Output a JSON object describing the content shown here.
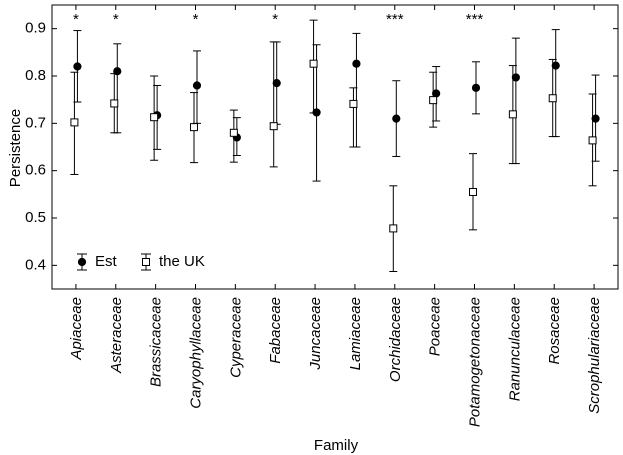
{
  "chart_data": {
    "type": "scatter",
    "xlabel": "Family",
    "ylabel": "Persistence",
    "ylim": [
      0.35,
      0.95
    ],
    "yticks": [
      "0.4",
      "0.5",
      "0.6",
      "0.7",
      "0.8",
      "0.9"
    ],
    "grid": false,
    "legend_position": "bottom-left",
    "categories": [
      "Apiaceae",
      "Asteraceae",
      "Brassicaceae",
      "Caryophyllaceae",
      "Cyperaceae",
      "Fabaceae",
      "Juncaceae",
      "Lamiaceae",
      "Orchidaceae",
      "Poaceae",
      "Potamogetonaceae",
      "Ranunculaceae",
      "Rosaceae",
      "Scrophulariaceae"
    ],
    "significance": [
      "*",
      "*",
      "",
      "*",
      "",
      "*",
      "",
      "",
      "***",
      "",
      "***",
      "",
      "",
      ""
    ],
    "series": [
      {
        "name": "Est",
        "marker": "filled-circle",
        "values": [
          0.82,
          0.81,
          0.717,
          0.78,
          0.67,
          0.785,
          0.723,
          0.826,
          0.71,
          0.763,
          0.775,
          0.797,
          0.822,
          0.71
        ],
        "lower": [
          0.745,
          0.68,
          0.645,
          0.7,
          0.632,
          0.698,
          0.578,
          0.65,
          0.63,
          0.705,
          0.72,
          0.615,
          0.672,
          0.62
        ],
        "upper": [
          0.896,
          0.868,
          0.78,
          0.853,
          0.712,
          0.872,
          0.866,
          0.89,
          0.79,
          0.82,
          0.83,
          0.88,
          0.898,
          0.802
        ]
      },
      {
        "name": "the UK",
        "marker": "open-square",
        "values": [
          0.702,
          0.742,
          0.713,
          0.692,
          0.68,
          0.694,
          0.826,
          0.741,
          0.478,
          0.749,
          0.555,
          0.719,
          0.753,
          0.664
        ],
        "lower": [
          0.592,
          0.68,
          0.622,
          0.617,
          0.618,
          0.608,
          0.722,
          0.65,
          0.387,
          0.692,
          0.475,
          0.615,
          0.672,
          0.568
        ],
        "upper": [
          0.808,
          0.805,
          0.8,
          0.765,
          0.728,
          0.872,
          0.918,
          0.775,
          0.568,
          0.808,
          0.636,
          0.822,
          0.835,
          0.762
        ]
      }
    ]
  }
}
